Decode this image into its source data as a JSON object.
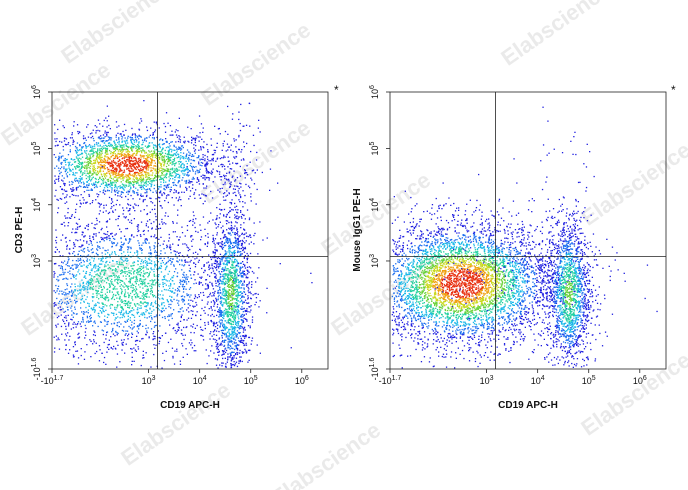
{
  "watermark": "Elabscience",
  "chart_data": [
    {
      "type": "scatter",
      "subtype": "flow-cytometry-density-dot-plot",
      "xlabel": "CD19 APC-H",
      "ylabel": "CD3 PE-H",
      "x_ticks": [
        {
          "base": "-10",
          "exp": "1.7"
        },
        {
          "base": "10",
          "exp": "3"
        },
        {
          "base": "10",
          "exp": "4"
        },
        {
          "base": "10",
          "exp": "5"
        },
        {
          "base": "10",
          "exp": "6"
        }
      ],
      "y_ticks": [
        {
          "base": "-10",
          "exp": "1.6"
        },
        {
          "base": "10",
          "exp": "3"
        },
        {
          "base": "10",
          "exp": "4"
        },
        {
          "base": "10",
          "exp": "5"
        },
        {
          "base": "10",
          "exp": "6"
        }
      ],
      "marker": "*",
      "gate": {
        "x": 1500,
        "y": 1200
      },
      "populations": [
        {
          "x": 350,
          "y": 52000,
          "spread_x": 0.33,
          "spread_y": 0.13,
          "n": 2600,
          "weight": 1.0
        },
        {
          "x": 300,
          "y": 350,
          "spread_x": 0.38,
          "spread_y": 0.26,
          "n": 2600,
          "weight": 0.55
        },
        {
          "x": 40000,
          "y": 250,
          "spread_x": 0.07,
          "spread_y": 0.32,
          "n": 1500,
          "weight": 0.6
        },
        {
          "x": 40000,
          "y": 60000,
          "spread_x": 0.1,
          "spread_y": 0.2,
          "n": 70,
          "weight": 0.1
        },
        {
          "x": 40000,
          "y": 6000,
          "spread_x": 0.1,
          "spread_y": 0.35,
          "n": 70,
          "weight": 0.1
        }
      ]
    },
    {
      "type": "scatter",
      "subtype": "flow-cytometry-density-dot-plot",
      "xlabel": "CD19 APC-H",
      "ylabel": "Mouse IgG1 PE-H",
      "x_ticks": [
        {
          "base": "-10",
          "exp": "1.7"
        },
        {
          "base": "10",
          "exp": "3"
        },
        {
          "base": "10",
          "exp": "4"
        },
        {
          "base": "10",
          "exp": "5"
        },
        {
          "base": "10",
          "exp": "6"
        }
      ],
      "y_ticks": [
        {
          "base": "-10",
          "exp": "1.6"
        },
        {
          "base": "10",
          "exp": "3"
        },
        {
          "base": "10",
          "exp": "4"
        },
        {
          "base": "10",
          "exp": "5"
        },
        {
          "base": "10",
          "exp": "6"
        }
      ],
      "marker": "*",
      "gate": {
        "x": 1500,
        "y": 1200
      },
      "populations": [
        {
          "x": 300,
          "y": 380,
          "spread_x": 0.33,
          "spread_y": 0.22,
          "n": 4800,
          "weight": 1.0
        },
        {
          "x": 40000,
          "y": 250,
          "spread_x": 0.08,
          "spread_y": 0.28,
          "n": 1500,
          "weight": 0.6
        },
        {
          "x": 8000,
          "y": 700,
          "spread_x": 0.35,
          "spread_y": 0.15,
          "n": 200,
          "weight": 0.15
        },
        {
          "x": 30000,
          "y": 8000,
          "spread_x": 0.2,
          "spread_y": 0.45,
          "n": 45,
          "weight": 0.1
        }
      ]
    }
  ]
}
